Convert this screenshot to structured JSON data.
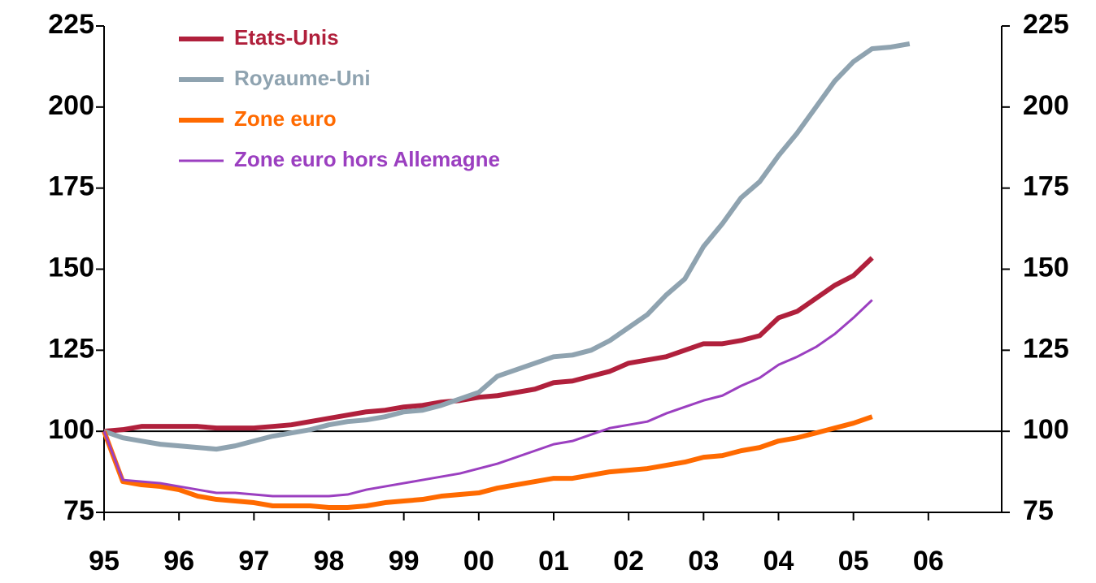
{
  "chart_data": {
    "type": "line",
    "x": [
      1995,
      1995.25,
      1995.5,
      1995.75,
      1996,
      1996.25,
      1996.5,
      1996.75,
      1997,
      1997.25,
      1997.5,
      1997.75,
      1998,
      1998.25,
      1998.5,
      1998.75,
      1999,
      1999.25,
      1999.5,
      1999.75,
      2000,
      2000.25,
      2000.5,
      2000.75,
      2001,
      2001.25,
      2001.5,
      2001.75,
      2002,
      2002.25,
      2002.5,
      2002.75,
      2003,
      2003.25,
      2003.5,
      2003.75,
      2004,
      2004.25,
      2004.5,
      2004.75,
      2005,
      2005.25,
      2005.5,
      2005.75
    ],
    "series": [
      {
        "name": "Etats-Unis",
        "color": "#b0203c",
        "width": 6,
        "values": [
          100,
          100.5,
          101.5,
          101.5,
          101.5,
          101.5,
          101,
          101,
          101,
          101.5,
          102,
          103,
          104,
          105,
          106,
          106.5,
          107.5,
          108,
          109,
          109.5,
          110.5,
          111,
          112,
          113,
          115,
          115.5,
          117,
          118.5,
          121,
          122,
          123,
          125,
          127,
          127,
          128,
          129.5,
          135,
          137,
          141,
          145,
          148,
          153.5,
          null,
          null
        ]
      },
      {
        "name": "Royaume-Uni",
        "color": "#8fa3b0",
        "width": 6,
        "values": [
          100,
          98,
          97,
          96,
          95.5,
          95,
          94.5,
          95.5,
          97,
          98.5,
          99.5,
          100.5,
          102,
          103,
          103.5,
          104.5,
          106,
          106.5,
          108,
          110,
          112,
          117,
          119,
          121,
          123,
          123.5,
          125,
          128,
          132,
          136,
          142,
          147,
          157,
          164,
          172,
          177,
          185,
          192,
          200,
          208,
          214,
          218,
          218.5,
          219.5
        ]
      },
      {
        "name": "Zone euro",
        "color": "#ff6a00",
        "width": 6,
        "values": [
          100,
          84.5,
          83.5,
          83,
          82,
          80,
          79,
          78.5,
          78,
          77,
          77,
          77,
          76.5,
          76.5,
          77,
          78,
          78.5,
          79,
          80,
          80.5,
          81,
          82.5,
          83.5,
          84.5,
          85.5,
          85.5,
          86.5,
          87.5,
          88,
          88.5,
          89.5,
          90.5,
          92,
          92.5,
          94,
          95,
          97,
          98,
          99.5,
          101,
          102.5,
          104.5,
          null,
          null
        ]
      },
      {
        "name": "Zone euro hors Allemagne",
        "color": "#9b3fc0",
        "width": 3,
        "values": [
          100,
          85,
          84.5,
          84,
          83,
          82,
          81,
          81,
          80.5,
          80,
          80,
          80,
          80,
          80.5,
          82,
          83,
          84,
          85,
          86,
          87,
          88.5,
          90,
          92,
          94,
          96,
          97,
          99,
          101,
          102,
          103,
          105.5,
          107.5,
          109.5,
          111,
          114,
          116.5,
          120.5,
          123,
          126,
          130,
          135,
          140.5,
          null,
          null
        ]
      }
    ],
    "xlim": [
      1995,
      2007
    ],
    "xticks": [
      {
        "value": 1995,
        "label": "95"
      },
      {
        "value": 1996,
        "label": "96"
      },
      {
        "value": 1997,
        "label": "97"
      },
      {
        "value": 1998,
        "label": "98"
      },
      {
        "value": 1999,
        "label": "99"
      },
      {
        "value": 2000,
        "label": "00"
      },
      {
        "value": 2001,
        "label": "01"
      },
      {
        "value": 2002,
        "label": "02"
      },
      {
        "value": 2003,
        "label": "03"
      },
      {
        "value": 2004,
        "label": "04"
      },
      {
        "value": 2005,
        "label": "05"
      },
      {
        "value": 2006,
        "label": "06"
      }
    ],
    "ylim": [
      75,
      225
    ],
    "yticks": [
      75,
      100,
      125,
      150,
      175,
      200,
      225
    ],
    "y2lim": [
      75,
      225
    ],
    "y2ticks": [
      75,
      100,
      125,
      150,
      175,
      200,
      225
    ],
    "reference_line": 100,
    "legend": "upper left",
    "grid": false
  }
}
